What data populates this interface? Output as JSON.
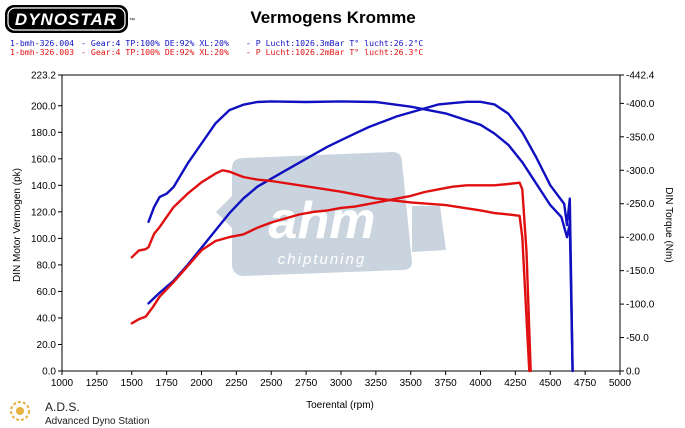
{
  "brand": {
    "logo_text": "DYNOSTAR",
    "logo_small": "™"
  },
  "legend": [
    {
      "run": "1-bmh-326.004",
      "params": "- Gear:4 TP:100% DE:92% XL:20%",
      "ambient": "- P Lucht:1026.3mBar T° lucht:26.2°C",
      "color": "#1010c0"
    },
    {
      "run": "1-bmh-326.003",
      "params": "- Gear:4 TP:100% DE:92% XL:20%",
      "ambient": "- P Lucht:1026.2mBar T° lucht:26.3°C",
      "color": "#e01010"
    }
  ],
  "watermark": {
    "logo": "ahm",
    "sub": "chiptuning"
  },
  "footer": {
    "company": "A.D.S.",
    "tagline": "Advanced Dyno Station"
  },
  "colors": {
    "blue": "#1010c0",
    "red": "#e01010",
    "watermark": "#b8c6d4"
  },
  "chart_data": {
    "type": "line",
    "title": "Vermogens Kromme",
    "xlabel": "Toerental (rpm)",
    "ylabel": "DIN Motor Vermogen (pk)",
    "y2label": "DIN Torque (Nm)",
    "xlim": [
      1000,
      5000
    ],
    "ylim": [
      0,
      223.2
    ],
    "y2lim": [
      0,
      -442.4
    ],
    "xticks": [
      "1000",
      "1250",
      "1500",
      "1750",
      "2000",
      "2250",
      "2500",
      "2750",
      "3000",
      "3250",
      "3500",
      "3750",
      "4000",
      "4250",
      "4500",
      "4750",
      "5000"
    ],
    "yticks": [
      "0.0",
      "20.0",
      "40.0",
      "60.0",
      "80.0",
      "100.0",
      "120.0",
      "140.0",
      "160.0",
      "180.0",
      "200.0",
      "223.2"
    ],
    "y2ticks": [
      "0.0",
      "-50.0",
      "-100.0",
      "-150.0",
      "-200.0",
      "-250.0",
      "-300.0",
      "-350.0",
      "-400.0",
      "-442.4"
    ],
    "series": [
      {
        "color": "#1010c0",
        "axis": "power",
        "x": [
          1620,
          1700,
          1800,
          1900,
          2000,
          2100,
          2200,
          2300,
          2400,
          2500,
          2600,
          2700,
          2800,
          2900,
          3000,
          3100,
          3200,
          3300,
          3400,
          3500,
          3600,
          3700,
          3800,
          3900,
          4000,
          4100,
          4200,
          4300,
          4400,
          4500,
          4600,
          4620,
          4640,
          4660
        ],
        "y": [
          51,
          59,
          68,
          80,
          93,
          106,
          119,
          130,
          139,
          145,
          151,
          157,
          163,
          169,
          174,
          179,
          184,
          188,
          192,
          195,
          198,
          201,
          202,
          203,
          203,
          201,
          194,
          180,
          161,
          140,
          126,
          110,
          130,
          0
        ]
      },
      {
        "color": "#1010c0",
        "axis": "torque",
        "x": [
          1620,
          1660,
          1700,
          1750,
          1800,
          1900,
          2000,
          2100,
          2200,
          2300,
          2400,
          2500,
          2750,
          3000,
          3250,
          3500,
          3750,
          4000,
          4100,
          4200,
          4300,
          4400,
          4500,
          4580,
          4620,
          4640,
          4660
        ],
        "y": [
          -223,
          -245,
          -260,
          -265,
          -275,
          -310,
          -340,
          -370,
          -390,
          -398,
          -402,
          -403,
          -402,
          -403,
          -402,
          -395,
          -385,
          -368,
          -355,
          -338,
          -312,
          -280,
          -248,
          -230,
          -200,
          -220,
          0
        ]
      },
      {
        "color": "#e01010",
        "axis": "power",
        "x": [
          1500,
          1550,
          1600,
          1650,
          1700,
          1800,
          1900,
          2000,
          2100,
          2200,
          2300,
          2400,
          2500,
          2600,
          2700,
          2800,
          2900,
          3000,
          3100,
          3200,
          3300,
          3400,
          3500,
          3600,
          3700,
          3800,
          3900,
          4000,
          4100,
          4200,
          4280,
          4300,
          4330,
          4360
        ],
        "y": [
          36,
          39,
          41,
          48,
          56,
          67,
          79,
          91,
          98,
          101,
          103,
          108,
          112,
          115,
          118,
          120,
          121,
          123,
          124,
          126,
          128,
          130,
          132,
          135,
          137,
          139,
          140,
          140,
          140,
          141,
          142,
          137,
          90,
          0
        ]
      },
      {
        "color": "#e01010",
        "axis": "torque",
        "x": [
          1500,
          1550,
          1600,
          1620,
          1660,
          1700,
          1800,
          1900,
          2000,
          2100,
          2150,
          2200,
          2300,
          2400,
          2500,
          2750,
          3000,
          3250,
          3500,
          3750,
          4000,
          4100,
          4200,
          4280,
          4300,
          4320,
          4350
        ],
        "y": [
          -170,
          -180,
          -182,
          -185,
          -205,
          -215,
          -245,
          -265,
          -282,
          -295,
          -300,
          -298,
          -290,
          -286,
          -284,
          -276,
          -268,
          -258,
          -252,
          -248,
          -240,
          -236,
          -234,
          -232,
          -200,
          -120,
          0
        ]
      }
    ]
  }
}
